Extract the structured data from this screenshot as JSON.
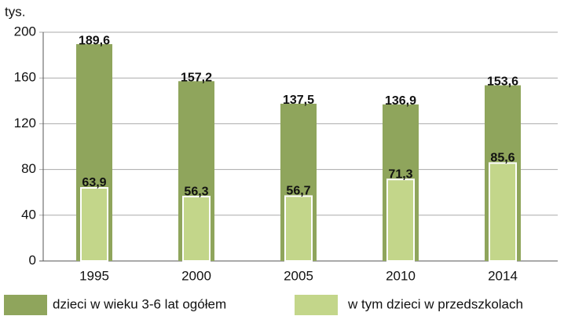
{
  "chart_data": {
    "type": "bar",
    "y_unit": "tys.",
    "categories": [
      "1995",
      "2000",
      "2005",
      "2010",
      "2014"
    ],
    "series": [
      {
        "name": "dzieci w wieku 3-6 lat ogółem",
        "color": "#8fa55c",
        "values": [
          189.6,
          157.2,
          137.5,
          136.9,
          153.6
        ],
        "value_labels": [
          "189,6",
          "157,2",
          "137,5",
          "136,9",
          "153,6"
        ]
      },
      {
        "name": "w tym dzieci w przedszkolach",
        "color": "#c3d68a",
        "values": [
          63.9,
          56.3,
          56.7,
          71.3,
          85.6
        ],
        "value_labels": [
          "63,9",
          "56,3",
          "56,7",
          "71,3",
          "85,6"
        ]
      }
    ],
    "ylim": [
      0,
      200
    ],
    "yticks": [
      0,
      40,
      80,
      120,
      160,
      200
    ],
    "grid": true
  }
}
